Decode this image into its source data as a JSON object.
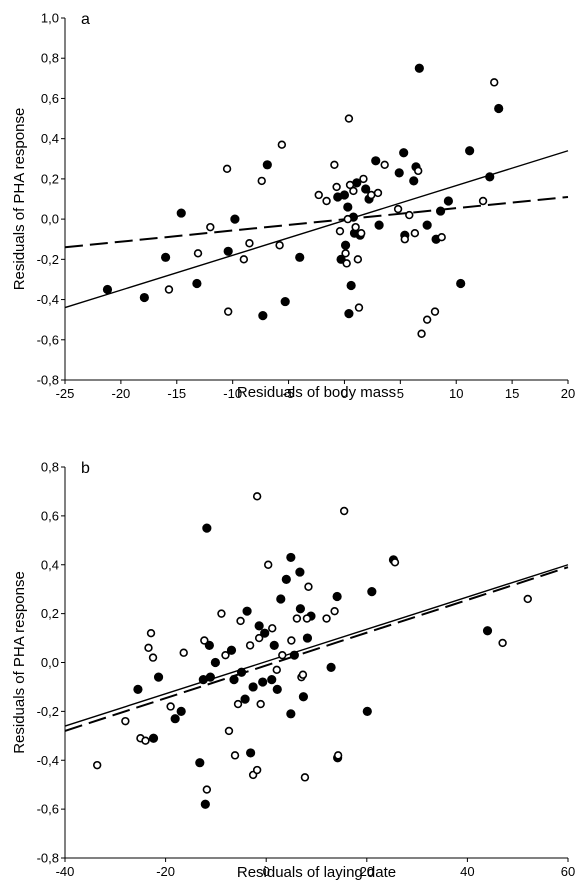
{
  "chart_data": [
    {
      "type": "scatter",
      "panel_label": "a",
      "xlabel": "Residuals of body mass",
      "ylabel": "Residuals of PHA response",
      "xlim": [
        -25,
        20
      ],
      "ylim": [
        -0.8,
        1.0
      ],
      "x_ticks": [
        -25,
        -20,
        -15,
        -10,
        -5,
        0,
        5,
        10,
        15,
        20
      ],
      "x_tick_labels": [
        "-25",
        "-20",
        "-15",
        "-10",
        "-5",
        "0",
        "5",
        "10",
        "15",
        "20"
      ],
      "y_ticks": [
        -0.8,
        -0.6,
        -0.4,
        -0.2,
        0.0,
        0.2,
        0.4,
        0.6,
        0.8,
        1.0
      ],
      "y_tick_labels": [
        "-0,8",
        "-0,6",
        "-0,4",
        "-0,2",
        "0,0",
        "0,2",
        "0,4",
        "0,6",
        "0,8",
        "1,0"
      ],
      "grid": false,
      "series": [
        {
          "marker": "filled",
          "color": "#000000",
          "points": [
            [
              -21.2,
              -0.35
            ],
            [
              -17.9,
              -0.39
            ],
            [
              -16.0,
              -0.19
            ],
            [
              -14.6,
              0.03
            ],
            [
              -13.2,
              -0.32
            ],
            [
              -10.4,
              -0.16
            ],
            [
              -9.8,
              0.0
            ],
            [
              -7.3,
              -0.48
            ],
            [
              -6.9,
              0.27
            ],
            [
              -5.3,
              -0.41
            ],
            [
              -4.0,
              -0.19
            ],
            [
              -0.6,
              0.11
            ],
            [
              -0.3,
              -0.2
            ],
            [
              0.0,
              0.12
            ],
            [
              0.1,
              -0.13
            ],
            [
              0.3,
              0.06
            ],
            [
              0.4,
              -0.47
            ],
            [
              0.6,
              -0.33
            ],
            [
              0.8,
              0.01
            ],
            [
              0.9,
              -0.07
            ],
            [
              1.1,
              0.18
            ],
            [
              1.4,
              -0.08
            ],
            [
              1.9,
              0.15
            ],
            [
              2.2,
              0.1
            ],
            [
              2.8,
              0.29
            ],
            [
              3.1,
              -0.03
            ],
            [
              4.9,
              0.23
            ],
            [
              5.3,
              0.33
            ],
            [
              5.4,
              -0.08
            ],
            [
              6.2,
              0.19
            ],
            [
              6.4,
              0.26
            ],
            [
              6.7,
              0.75
            ],
            [
              7.4,
              -0.03
            ],
            [
              8.2,
              -0.1
            ],
            [
              8.6,
              0.04
            ],
            [
              9.3,
              0.09
            ],
            [
              10.4,
              -0.32
            ],
            [
              11.2,
              0.34
            ],
            [
              13.0,
              0.21
            ],
            [
              13.8,
              0.55
            ]
          ]
        },
        {
          "marker": "open",
          "color": "#000000",
          "points": [
            [
              -15.7,
              -0.35
            ],
            [
              -13.1,
              -0.17
            ],
            [
              -12.0,
              -0.04
            ],
            [
              -10.5,
              0.25
            ],
            [
              -10.4,
              -0.46
            ],
            [
              -9.0,
              -0.2
            ],
            [
              -8.5,
              -0.12
            ],
            [
              -7.4,
              0.19
            ],
            [
              -5.8,
              -0.13
            ],
            [
              -5.6,
              0.37
            ],
            [
              -2.3,
              0.12
            ],
            [
              -1.6,
              0.09
            ],
            [
              -0.9,
              0.27
            ],
            [
              -0.7,
              0.16
            ],
            [
              -0.4,
              -0.06
            ],
            [
              0.1,
              -0.17
            ],
            [
              0.2,
              -0.22
            ],
            [
              0.3,
              0.0
            ],
            [
              0.4,
              0.5
            ],
            [
              0.5,
              0.17
            ],
            [
              0.8,
              0.14
            ],
            [
              1.0,
              -0.04
            ],
            [
              1.2,
              -0.2
            ],
            [
              1.3,
              -0.44
            ],
            [
              1.5,
              -0.07
            ],
            [
              1.7,
              0.2
            ],
            [
              2.4,
              0.12
            ],
            [
              3.0,
              0.13
            ],
            [
              3.6,
              0.27
            ],
            [
              4.8,
              0.05
            ],
            [
              5.4,
              -0.1
            ],
            [
              5.8,
              0.02
            ],
            [
              6.3,
              -0.07
            ],
            [
              6.6,
              0.24
            ],
            [
              6.9,
              -0.57
            ],
            [
              7.4,
              -0.5
            ],
            [
              8.1,
              -0.46
            ],
            [
              8.7,
              -0.09
            ],
            [
              12.4,
              0.09
            ],
            [
              13.4,
              0.68
            ]
          ]
        }
      ],
      "lines": [
        {
          "style": "solid",
          "from": [
            -25,
            -0.44
          ],
          "to": [
            20,
            0.34
          ]
        },
        {
          "style": "dashed",
          "from": [
            -25,
            -0.14
          ],
          "to": [
            20,
            0.11
          ]
        }
      ]
    },
    {
      "type": "scatter",
      "panel_label": "b",
      "xlabel": "Residuals of laying date",
      "ylabel": "Residuals of PHA response",
      "xlim": [
        -40,
        60
      ],
      "ylim": [
        -0.8,
        0.8
      ],
      "x_ticks": [
        -40,
        -20,
        0,
        20,
        40,
        60
      ],
      "x_tick_labels": [
        "-40",
        "-20",
        "0",
        "20",
        "40",
        "60"
      ],
      "y_ticks": [
        -0.8,
        -0.6,
        -0.4,
        -0.2,
        0.0,
        0.2,
        0.4,
        0.6,
        0.8
      ],
      "y_tick_labels": [
        "-0,8",
        "-0,6",
        "-0,4",
        "-0,2",
        "0,0",
        "0,2",
        "0,4",
        "0,6",
        "0,8"
      ],
      "grid": false,
      "series": [
        {
          "marker": "filled",
          "color": "#000000",
          "points": [
            [
              -25.5,
              -0.11
            ],
            [
              -22.4,
              -0.31
            ],
            [
              -21.4,
              -0.06
            ],
            [
              -18.1,
              -0.23
            ],
            [
              -16.9,
              -0.2
            ],
            [
              -13.2,
              -0.41
            ],
            [
              -12.5,
              -0.07
            ],
            [
              -12.1,
              -0.58
            ],
            [
              -11.8,
              0.55
            ],
            [
              -11.3,
              0.07
            ],
            [
              -11.1,
              -0.06
            ],
            [
              -10.1,
              0.0
            ],
            [
              -6.9,
              0.05
            ],
            [
              -6.4,
              -0.07
            ],
            [
              -4.9,
              -0.04
            ],
            [
              -4.2,
              -0.15
            ],
            [
              -3.8,
              0.21
            ],
            [
              -3.1,
              -0.37
            ],
            [
              -2.6,
              -0.1
            ],
            [
              -1.4,
              0.15
            ],
            [
              -0.7,
              -0.08
            ],
            [
              -0.3,
              0.12
            ],
            [
              1.1,
              -0.07
            ],
            [
              1.6,
              0.07
            ],
            [
              2.2,
              -0.11
            ],
            [
              2.9,
              0.26
            ],
            [
              4.0,
              0.34
            ],
            [
              4.9,
              0.43
            ],
            [
              4.9,
              -0.21
            ],
            [
              5.6,
              0.03
            ],
            [
              6.7,
              0.37
            ],
            [
              6.8,
              0.22
            ],
            [
              7.4,
              -0.14
            ],
            [
              8.2,
              0.1
            ],
            [
              8.9,
              0.19
            ],
            [
              12.9,
              -0.02
            ],
            [
              14.1,
              0.27
            ],
            [
              14.2,
              -0.39
            ],
            [
              20.1,
              -0.2
            ],
            [
              21.0,
              0.29
            ],
            [
              25.3,
              0.42
            ],
            [
              44.0,
              0.13
            ]
          ]
        },
        {
          "marker": "open",
          "color": "#000000",
          "points": [
            [
              -33.6,
              -0.42
            ],
            [
              -28.0,
              -0.24
            ],
            [
              -25.0,
              -0.31
            ],
            [
              -24.0,
              -0.32
            ],
            [
              -23.4,
              0.06
            ],
            [
              -22.9,
              0.12
            ],
            [
              -22.5,
              0.02
            ],
            [
              -19.0,
              -0.18
            ],
            [
              -16.4,
              0.04
            ],
            [
              -12.3,
              0.09
            ],
            [
              -11.8,
              -0.52
            ],
            [
              -8.9,
              0.2
            ],
            [
              -8.1,
              0.03
            ],
            [
              -7.4,
              -0.28
            ],
            [
              -6.2,
              -0.38
            ],
            [
              -5.6,
              -0.17
            ],
            [
              -5.1,
              0.17
            ],
            [
              -3.2,
              0.07
            ],
            [
              -2.6,
              -0.46
            ],
            [
              -1.8,
              -0.44
            ],
            [
              -1.8,
              0.68
            ],
            [
              -1.4,
              0.1
            ],
            [
              -1.1,
              -0.17
            ],
            [
              0.4,
              0.4
            ],
            [
              1.2,
              0.14
            ],
            [
              2.1,
              -0.03
            ],
            [
              3.2,
              0.03
            ],
            [
              5.0,
              0.09
            ],
            [
              6.1,
              0.18
            ],
            [
              7.0,
              -0.06
            ],
            [
              7.3,
              -0.05
            ],
            [
              7.7,
              -0.47
            ],
            [
              8.1,
              0.18
            ],
            [
              8.4,
              0.31
            ],
            [
              12.0,
              0.18
            ],
            [
              13.6,
              0.21
            ],
            [
              14.3,
              -0.38
            ],
            [
              15.5,
              0.62
            ],
            [
              25.6,
              0.41
            ],
            [
              47.0,
              0.08
            ],
            [
              52.0,
              0.26
            ]
          ]
        }
      ],
      "lines": [
        {
          "style": "solid",
          "from": [
            -40,
            -0.26
          ],
          "to": [
            60,
            0.4
          ]
        },
        {
          "style": "dashed",
          "from": [
            -40,
            -0.28
          ],
          "to": [
            60,
            0.39
          ]
        }
      ]
    }
  ]
}
